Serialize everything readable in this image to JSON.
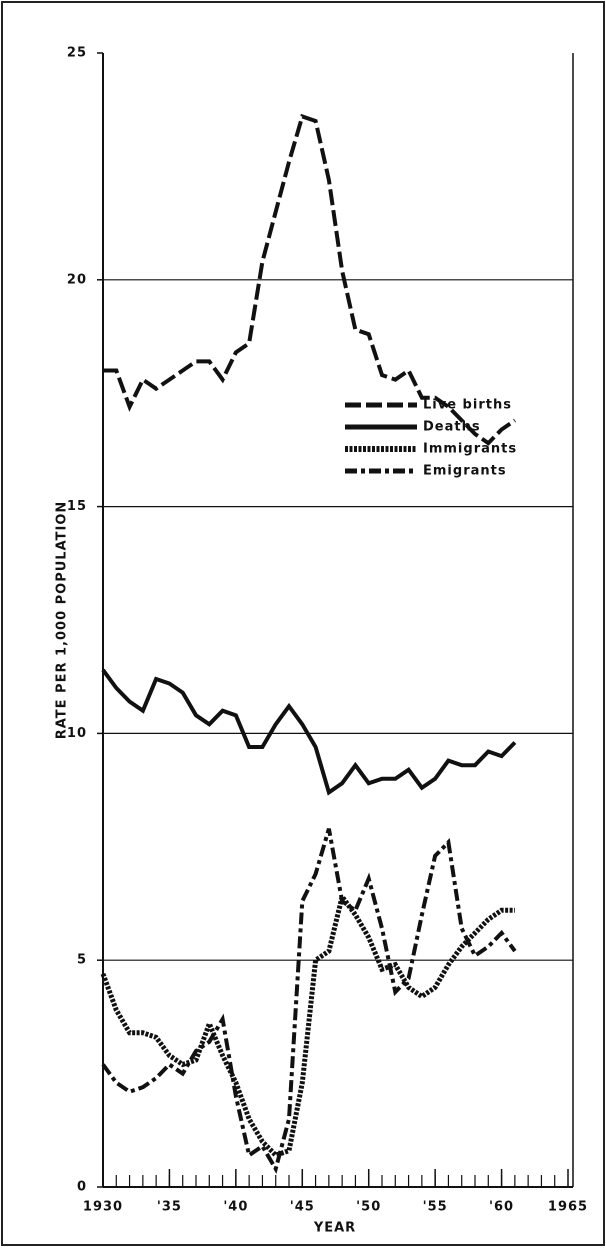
{
  "chart_data": {
    "type": "line",
    "xlabel": "YEAR",
    "ylabel": "RATE PER 1,000 POPULATION",
    "x": [
      1930,
      1931,
      1932,
      1933,
      1934,
      1935,
      1936,
      1937,
      1938,
      1939,
      1940,
      1941,
      1942,
      1943,
      1944,
      1945,
      1946,
      1947,
      1948,
      1949,
      1950,
      1951,
      1952,
      1953,
      1954,
      1955,
      1956,
      1957,
      1958,
      1959,
      1960,
      1961
    ],
    "series": [
      {
        "name": "Live births",
        "color": "#111111",
        "style": "dashed",
        "values": [
          18.0,
          18.0,
          17.2,
          17.8,
          17.6,
          17.8,
          18.0,
          18.2,
          18.2,
          17.8,
          18.4,
          18.6,
          20.4,
          21.5,
          22.6,
          23.6,
          23.5,
          22.2,
          20.2,
          18.9,
          18.8,
          17.9,
          17.8,
          18.0,
          17.4,
          17.4,
          17.2,
          16.9,
          16.6,
          16.4,
          16.7,
          16.9
        ]
      },
      {
        "name": "Deaths",
        "color": "#111111",
        "style": "solid",
        "values": [
          11.4,
          11.0,
          10.7,
          10.5,
          11.2,
          11.1,
          10.9,
          10.4,
          10.2,
          10.5,
          10.4,
          9.7,
          9.7,
          10.2,
          10.6,
          10.2,
          9.7,
          8.7,
          8.9,
          9.3,
          8.9,
          9.0,
          9.0,
          9.2,
          8.8,
          9.0,
          9.4,
          9.3,
          9.3,
          9.6,
          9.5,
          9.8
        ]
      },
      {
        "name": "Immigrants",
        "color": "#111111",
        "style": "dotted",
        "values": [
          4.7,
          3.9,
          3.4,
          3.4,
          3.3,
          2.9,
          2.7,
          2.8,
          3.6,
          2.9,
          2.3,
          1.5,
          1.0,
          0.7,
          0.8,
          2.3,
          5.0,
          5.2,
          6.4,
          6.0,
          5.5,
          4.8,
          4.9,
          4.4,
          4.2,
          4.4,
          4.9,
          5.3,
          5.6,
          5.9,
          6.1,
          6.1
        ]
      },
      {
        "name": "Emigrants",
        "color": "#111111",
        "style": "dashdot",
        "values": [
          2.7,
          2.3,
          2.1,
          2.2,
          2.4,
          2.7,
          2.5,
          3.0,
          3.2,
          3.7,
          2.0,
          0.7,
          0.9,
          0.4,
          1.5,
          6.3,
          6.9,
          7.9,
          6.3,
          6.1,
          6.8,
          5.7,
          4.3,
          4.6,
          6.0,
          7.3,
          7.6,
          5.7,
          5.1,
          5.3,
          5.6,
          5.2
        ]
      }
    ],
    "xlim": [
      1930,
      1965
    ],
    "xticks": [
      1930,
      {
        "value": 1935,
        "label": "'35"
      },
      {
        "value": 1940,
        "label": "'40"
      },
      {
        "value": 1945,
        "label": "'45"
      },
      {
        "value": 1950,
        "label": "'50"
      },
      {
        "value": 1955,
        "label": "'55"
      },
      {
        "value": 1960,
        "label": "'60"
      },
      1965
    ],
    "ylim": [
      0,
      25
    ],
    "yticks": [
      0,
      5,
      10,
      15,
      20,
      25
    ],
    "grid": true,
    "legend": "right"
  }
}
